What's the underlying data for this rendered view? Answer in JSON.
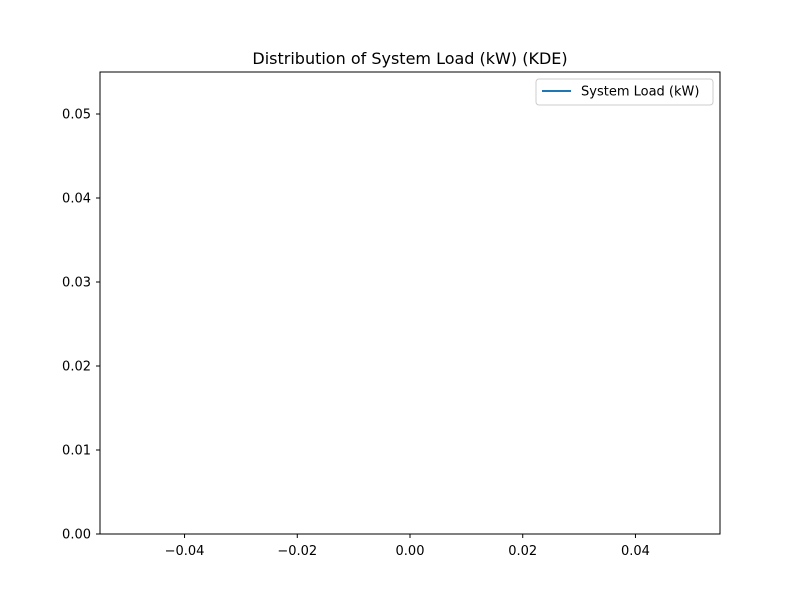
{
  "chart_data": {
    "type": "line",
    "title": "Distribution of System Load (kW) (KDE)",
    "xlabel": "",
    "ylabel": "",
    "xlim": [
      -0.055,
      0.055
    ],
    "ylim": [
      0,
      0.055
    ],
    "xticks": [
      -0.04,
      -0.02,
      0.0,
      0.02,
      0.04
    ],
    "xtick_labels": [
      "−0.04",
      "−0.02",
      "0.00",
      "0.02",
      "0.04"
    ],
    "yticks": [
      0.0,
      0.01,
      0.02,
      0.03,
      0.04,
      0.05
    ],
    "ytick_labels": [
      "0.00",
      "0.01",
      "0.02",
      "0.03",
      "0.04",
      "0.05"
    ],
    "grid": false,
    "legend_position": "top-right",
    "series": [
      {
        "name": "System Load (kW)",
        "color": "#1f77b4",
        "x": [],
        "y": []
      }
    ]
  }
}
